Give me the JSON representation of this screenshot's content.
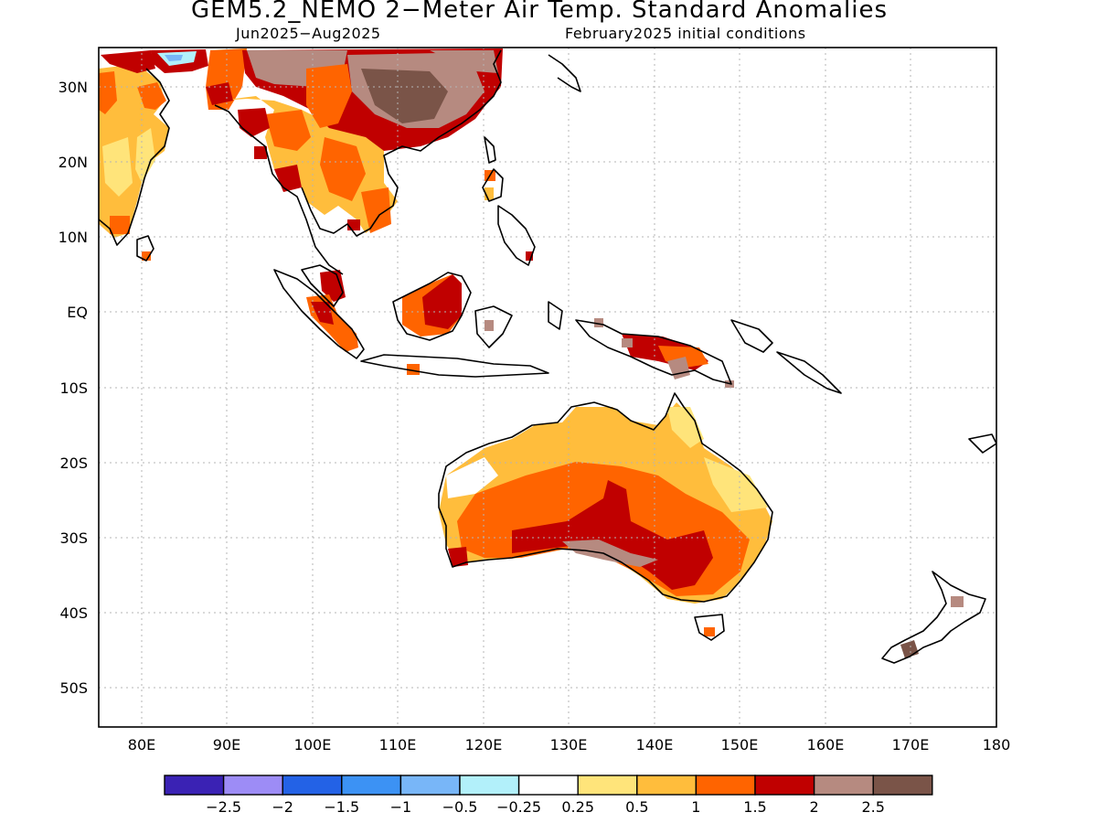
{
  "header": {
    "title": "GEM5.2_NEMO 2−Meter Air Temp. Standard Anomalies",
    "period": "Jun2025−Aug2025",
    "init": "February2025 initial conditions"
  },
  "axes": {
    "lat_labels": [
      "30N",
      "20N",
      "10N",
      "EQ",
      "10S",
      "20S",
      "30S",
      "40S",
      "50S"
    ],
    "lon_labels": [
      "80E",
      "90E",
      "100E",
      "110E",
      "120E",
      "130E",
      "140E",
      "150E",
      "160E",
      "170E",
      "180"
    ]
  },
  "colorbar": {
    "colors": [
      "#3a22b4",
      "#9d8cf6",
      "#2362e6",
      "#3c92f4",
      "#78b6f8",
      "#b2f0fa",
      "#ffffff",
      "#ffe47a",
      "#ffbd3c",
      "#ff6400",
      "#c00000",
      "#b68a80",
      "#7a5448"
    ],
    "labels": [
      "−2.5",
      "−2",
      "−1.5",
      "−1",
      "−0.5",
      "−0.25",
      "0.25",
      "0.5",
      "1",
      "1.5",
      "2",
      "2.5"
    ]
  },
  "map": {
    "extent": {
      "lon_min": 75,
      "lon_max": 180,
      "lat_min": -55,
      "lat_max": 35
    },
    "colors": {
      "land_outline": "#000000",
      "grid": "#b4b4b4",
      "light_orange": "#ffbd3c",
      "orange": "#ff6400",
      "red": "#c00000",
      "yellow": "#ffe47a",
      "brown_light": "#b68a80",
      "brown_dark": "#7a5448",
      "cyan": "#b2f0fa",
      "blue": "#78b6f8"
    }
  }
}
